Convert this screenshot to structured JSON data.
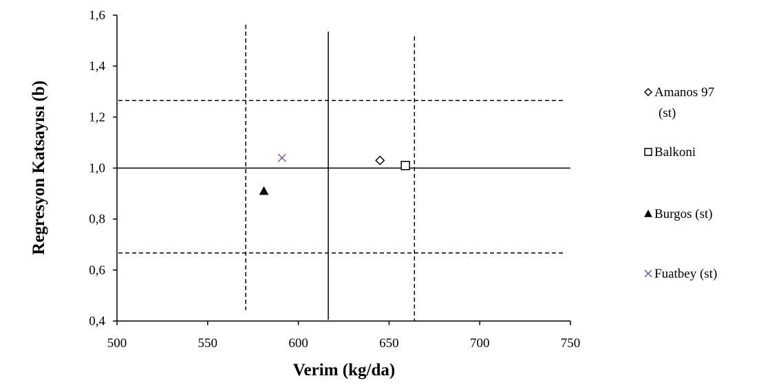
{
  "chart_data": {
    "type": "scatter",
    "xlabel": "Verim (kg/da)",
    "ylabel": "Regresyon Katsayısı (b)",
    "xlim": [
      500,
      750
    ],
    "ylim": [
      0.4,
      1.6
    ],
    "x_ticks": [
      "500",
      "550",
      "600",
      "650",
      "700",
      "750"
    ],
    "y_ticks": [
      "0,4",
      "0,6",
      "0,8",
      "1,0",
      "1,2",
      "1,4",
      "1,6"
    ],
    "grid": false,
    "legend_position": "right",
    "series": [
      {
        "name": "Amanos 97 (st)",
        "legend_lines": [
          "Amanos 97",
          "(st)"
        ],
        "marker": "diamond",
        "color": "#000000",
        "x": 645,
        "y": 1.03
      },
      {
        "name": "Balkoni",
        "legend_lines": [
          "Balkoni"
        ],
        "marker": "square",
        "color": "#000000",
        "x": 659,
        "y": 1.01
      },
      {
        "name": "Burgos (st)",
        "legend_lines": [
          "Burgos (st)"
        ],
        "marker": "triangle",
        "color": "#000000",
        "x": 581,
        "y": 0.91
      },
      {
        "name": "Fuatbey (st)",
        "legend_lines": [
          "Fuatbey (st)"
        ],
        "marker": "x",
        "color": "#8064a2",
        "x": 591,
        "y": 1.04
      }
    ],
    "reference_lines": {
      "vertical_solid": 616.5,
      "vertical_dashed": [
        571,
        664
      ],
      "horizontal_solid": 1.0,
      "horizontal_dashed": [
        1.265,
        0.667
      ]
    }
  }
}
